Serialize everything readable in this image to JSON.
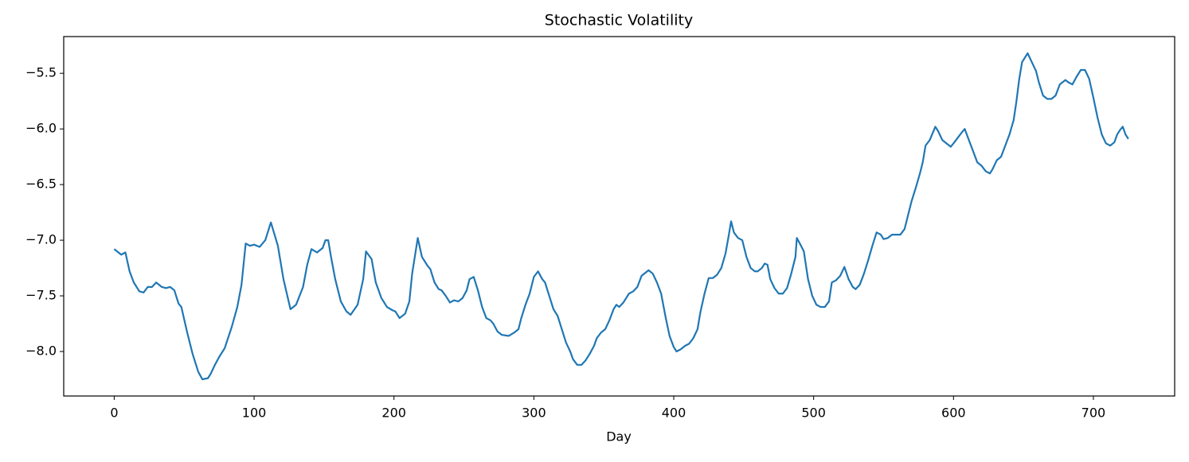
{
  "chart_data": {
    "type": "line",
    "title": "Stochastic Volatility",
    "x_label": "Day",
    "x": [
      0,
      5,
      8,
      11,
      14,
      18,
      21,
      24,
      27,
      30,
      34,
      37,
      40,
      43,
      46,
      48,
      52,
      56,
      60,
      63,
      67,
      69,
      72,
      75,
      79,
      84,
      88,
      91,
      94,
      97,
      100,
      104,
      108,
      112,
      117,
      121,
      126,
      130,
      135,
      138,
      141,
      145,
      149,
      151,
      153,
      155,
      158,
      162,
      166,
      169,
      174,
      178,
      180,
      184,
      187,
      191,
      195,
      199,
      201,
      204,
      208,
      211,
      213,
      217,
      220,
      224,
      226,
      229,
      232,
      234,
      237,
      240,
      243,
      246,
      249,
      252,
      254,
      257,
      260,
      263,
      266,
      269,
      271,
      274,
      277,
      282,
      286,
      289,
      291,
      294,
      297,
      300,
      303,
      306,
      308,
      311,
      314,
      317,
      320,
      323,
      326,
      328,
      331,
      334,
      337,
      340,
      343,
      345,
      348,
      351,
      354,
      357,
      359,
      361,
      364,
      368,
      371,
      374,
      377,
      380,
      382,
      385,
      388,
      391,
      394,
      397,
      400,
      402,
      405,
      408,
      411,
      414,
      417,
      419,
      422,
      425,
      428,
      431,
      434,
      437,
      439,
      441,
      443,
      446,
      449,
      452,
      455,
      458,
      460,
      463,
      465,
      467,
      469,
      472,
      475,
      478,
      481,
      484,
      487,
      488,
      491,
      493,
      496,
      499,
      502,
      505,
      508,
      511,
      513,
      516,
      519,
      522,
      525,
      528,
      530,
      533,
      536,
      539,
      542,
      545,
      548,
      550,
      553,
      556,
      562,
      565,
      567,
      570,
      573,
      576,
      578,
      580,
      583,
      587,
      589,
      592,
      595,
      598,
      600,
      603,
      606,
      608,
      611,
      614,
      617,
      620,
      623,
      626,
      628,
      631,
      634,
      637,
      640,
      643,
      645,
      647,
      649,
      653,
      656,
      659,
      661,
      664,
      667,
      670,
      673,
      676,
      680,
      682,
      685,
      688,
      691,
      694,
      697,
      700,
      703,
      706,
      709,
      712,
      715,
      717,
      719,
      721,
      723,
      725
    ],
    "series": [
      {
        "color": "#1f77b4",
        "values": [
          -7.08,
          -7.13,
          -7.11,
          -7.28,
          -7.38,
          -7.46,
          -7.47,
          -7.42,
          -7.42,
          -7.38,
          -7.42,
          -7.43,
          -7.42,
          -7.45,
          -7.57,
          -7.6,
          -7.82,
          -8.02,
          -8.18,
          -8.25,
          -8.24,
          -8.2,
          -8.12,
          -8.05,
          -7.97,
          -7.78,
          -7.6,
          -7.4,
          -7.03,
          -7.05,
          -7.04,
          -7.06,
          -7.0,
          -6.84,
          -7.05,
          -7.35,
          -7.62,
          -7.58,
          -7.42,
          -7.22,
          -7.08,
          -7.11,
          -7.07,
          -7.0,
          -7.0,
          -7.15,
          -7.35,
          -7.55,
          -7.64,
          -7.67,
          -7.58,
          -7.35,
          -7.1,
          -7.17,
          -7.38,
          -7.52,
          -7.6,
          -7.63,
          -7.64,
          -7.7,
          -7.66,
          -7.55,
          -7.3,
          -6.98,
          -7.15,
          -7.23,
          -7.26,
          -7.38,
          -7.44,
          -7.45,
          -7.5,
          -7.56,
          -7.54,
          -7.55,
          -7.52,
          -7.45,
          -7.35,
          -7.33,
          -7.45,
          -7.6,
          -7.7,
          -7.72,
          -7.75,
          -7.82,
          -7.85,
          -7.86,
          -7.83,
          -7.8,
          -7.7,
          -7.58,
          -7.48,
          -7.33,
          -7.28,
          -7.35,
          -7.38,
          -7.5,
          -7.62,
          -7.68,
          -7.8,
          -7.92,
          -8.0,
          -8.07,
          -8.12,
          -8.12,
          -8.08,
          -8.02,
          -7.95,
          -7.88,
          -7.83,
          -7.8,
          -7.72,
          -7.62,
          -7.58,
          -7.6,
          -7.56,
          -7.48,
          -7.46,
          -7.42,
          -7.32,
          -7.29,
          -7.27,
          -7.3,
          -7.38,
          -7.48,
          -7.68,
          -7.86,
          -7.96,
          -8.0,
          -7.98,
          -7.95,
          -7.93,
          -7.88,
          -7.8,
          -7.65,
          -7.48,
          -7.34,
          -7.34,
          -7.31,
          -7.25,
          -7.12,
          -6.98,
          -6.83,
          -6.93,
          -6.98,
          -7.0,
          -7.15,
          -7.25,
          -7.28,
          -7.28,
          -7.25,
          -7.21,
          -7.22,
          -7.35,
          -7.43,
          -7.48,
          -7.48,
          -7.43,
          -7.3,
          -7.15,
          -6.98,
          -7.05,
          -7.1,
          -7.35,
          -7.5,
          -7.58,
          -7.6,
          -7.6,
          -7.55,
          -7.38,
          -7.36,
          -7.32,
          -7.24,
          -7.35,
          -7.42,
          -7.44,
          -7.4,
          -7.3,
          -7.18,
          -7.05,
          -6.93,
          -6.95,
          -6.99,
          -6.98,
          -6.95,
          -6.95,
          -6.9,
          -6.8,
          -6.65,
          -6.53,
          -6.4,
          -6.3,
          -6.15,
          -6.1,
          -5.98,
          -6.02,
          -6.1,
          -6.13,
          -6.16,
          -6.13,
          -6.08,
          -6.03,
          -6.0,
          -6.1,
          -6.2,
          -6.3,
          -6.33,
          -6.38,
          -6.4,
          -6.36,
          -6.28,
          -6.25,
          -6.15,
          -6.05,
          -5.92,
          -5.75,
          -5.55,
          -5.4,
          -5.32,
          -5.4,
          -5.48,
          -5.58,
          -5.7,
          -5.73,
          -5.73,
          -5.7,
          -5.6,
          -5.56,
          -5.58,
          -5.6,
          -5.53,
          -5.47,
          -5.47,
          -5.55,
          -5.72,
          -5.9,
          -6.05,
          -6.13,
          -6.15,
          -6.12,
          -6.05,
          -6.01,
          -5.98,
          -6.05,
          -6.09
        ]
      }
    ],
    "xlim": [
      -36.1,
      758.1
    ],
    "ylim": [
      -8.4,
      -5.17
    ],
    "xticks": [
      0,
      100,
      200,
      300,
      400,
      500,
      600,
      700
    ],
    "yticks": [
      {
        "value": -8.0,
        "label": "−8.0"
      },
      {
        "value": -7.5,
        "label": "−7.5"
      },
      {
        "value": -7.0,
        "label": "−7.0"
      },
      {
        "value": -6.5,
        "label": "−6.5"
      },
      {
        "value": -6.0,
        "label": "−6.0"
      },
      {
        "value": -5.5,
        "label": "−5.5"
      }
    ]
  }
}
